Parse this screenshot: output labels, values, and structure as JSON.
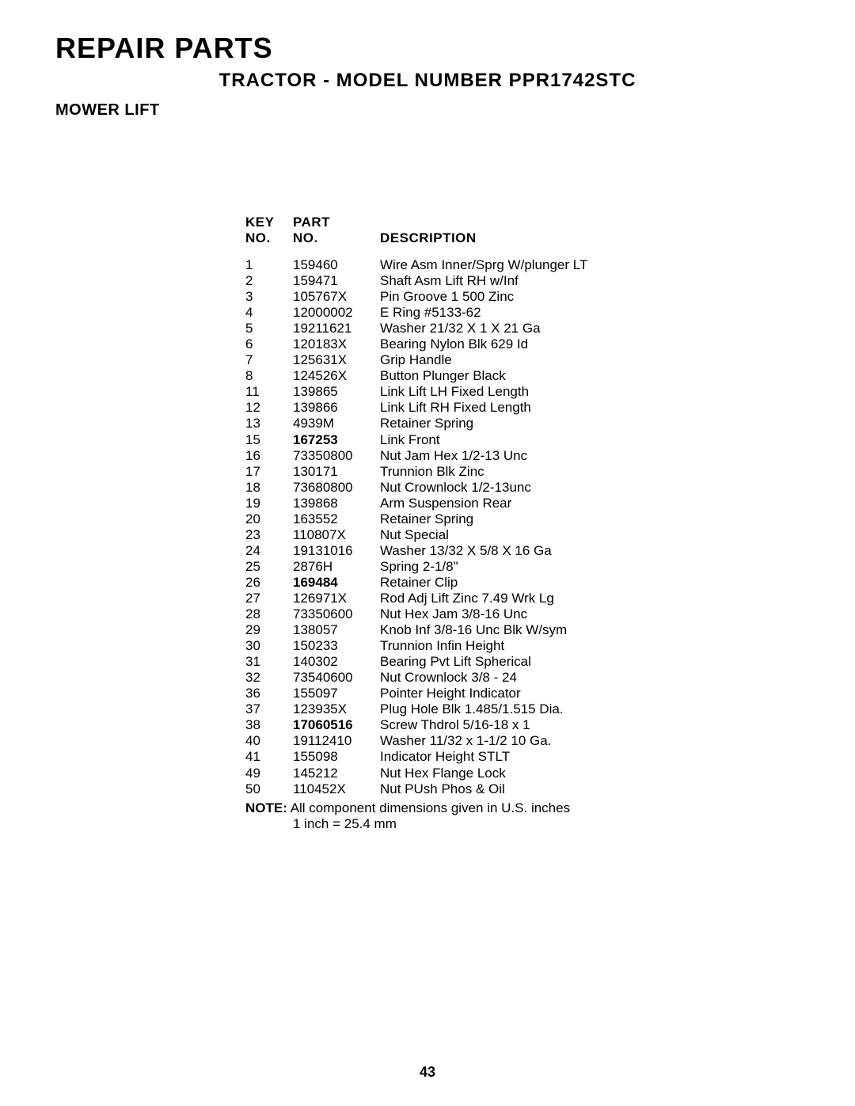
{
  "header": {
    "main_title": "REPAIR PARTS",
    "sub_title": "TRACTOR - MODEL NUMBER PPR1742STC",
    "section_title": "MOWER LIFT"
  },
  "table": {
    "columns": {
      "key_label_line1": "KEY",
      "key_label_line2": "NO.",
      "part_label_line1": "PART",
      "part_label_line2": "NO.",
      "desc_label": "DESCRIPTION"
    },
    "rows": [
      {
        "key": "1",
        "part": "159460",
        "bold": false,
        "desc": "Wire Asm Inner/Sprg W/plunger LT"
      },
      {
        "key": "2",
        "part": "159471",
        "bold": false,
        "desc": "Shaft Asm Lift RH w/Inf"
      },
      {
        "key": "3",
        "part": "105767X",
        "bold": false,
        "desc": "Pin Groove 1 500 Zinc"
      },
      {
        "key": "4",
        "part": "12000002",
        "bold": false,
        "desc": "E Ring #5133-62"
      },
      {
        "key": "5",
        "part": "19211621",
        "bold": false,
        "desc": "Washer 21/32 X 1 X 21 Ga"
      },
      {
        "key": "6",
        "part": "120183X",
        "bold": false,
        "desc": "Bearing Nylon Blk 629 Id"
      },
      {
        "key": "7",
        "part": "125631X",
        "bold": false,
        "desc": "Grip Handle"
      },
      {
        "key": "8",
        "part": "124526X",
        "bold": false,
        "desc": "Button Plunger Black"
      },
      {
        "key": "11",
        "part": "139865",
        "bold": false,
        "desc": "Link Lift LH Fixed Length"
      },
      {
        "key": "12",
        "part": "139866",
        "bold": false,
        "desc": "Link Lift RH Fixed Length"
      },
      {
        "key": "13",
        "part": "4939M",
        "bold": false,
        "desc": "Retainer Spring"
      },
      {
        "key": "15",
        "part": "167253",
        "bold": true,
        "desc": "Link Front"
      },
      {
        "key": "16",
        "part": "73350800",
        "bold": false,
        "desc": "Nut Jam Hex 1/2-13 Unc"
      },
      {
        "key": "17",
        "part": "130171",
        "bold": false,
        "desc": "Trunnion Blk Zinc"
      },
      {
        "key": "18",
        "part": "73680800",
        "bold": false,
        "desc": "Nut Crownlock 1/2-13unc"
      },
      {
        "key": "19",
        "part": "139868",
        "bold": false,
        "desc": "Arm Suspension Rear"
      },
      {
        "key": "20",
        "part": "163552",
        "bold": false,
        "desc": "Retainer Spring"
      },
      {
        "key": "23",
        "part": "110807X",
        "bold": false,
        "desc": "Nut Special"
      },
      {
        "key": "24",
        "part": "19131016",
        "bold": false,
        "desc": "Washer 13/32 X 5/8 X 16 Ga"
      },
      {
        "key": "25",
        "part": "2876H",
        "bold": false,
        "desc": "Spring 2-1/8\""
      },
      {
        "key": "26",
        "part": "169484",
        "bold": true,
        "desc": "Retainer Clip"
      },
      {
        "key": "27",
        "part": "126971X",
        "bold": false,
        "desc": "Rod Adj Lift Zinc 7.49 Wrk Lg"
      },
      {
        "key": "28",
        "part": "73350600",
        "bold": false,
        "desc": "Nut Hex Jam 3/8-16 Unc"
      },
      {
        "key": "29",
        "part": "138057",
        "bold": false,
        "desc": "Knob Inf 3/8-16 Unc Blk W/sym"
      },
      {
        "key": "30",
        "part": "150233",
        "bold": false,
        "desc": "Trunnion Infin Height"
      },
      {
        "key": "31",
        "part": "140302",
        "bold": false,
        "desc": "Bearing Pvt Lift Spherical"
      },
      {
        "key": "32",
        "part": "73540600",
        "bold": false,
        "desc": "Nut Crownlock 3/8 - 24"
      },
      {
        "key": "36",
        "part": "155097",
        "bold": false,
        "desc": "Pointer Height Indicator"
      },
      {
        "key": "37",
        "part": "123935X",
        "bold": false,
        "desc": "Plug Hole Blk 1.485/1.515 Dia."
      },
      {
        "key": "38",
        "part": "17060516",
        "bold": true,
        "desc": "Screw Thdrol  5/16-18 x 1"
      },
      {
        "key": "40",
        "part": "19112410",
        "bold": false,
        "desc": "Washer 11/32 x 1-1/2 10 Ga."
      },
      {
        "key": "41",
        "part": "155098",
        "bold": false,
        "desc": "Indicator Height STLT"
      },
      {
        "key": "49",
        "part": "145212",
        "bold": false,
        "desc": "Nut Hex Flange Lock"
      },
      {
        "key": "50",
        "part": "110452X",
        "bold": false,
        "desc": "Nut PUsh Phos & Oil"
      }
    ]
  },
  "note": {
    "label": "NOTE:",
    "line1": "All component dimensions given in U.S. inches",
    "line2": "1 inch = 25.4 mm"
  },
  "page_number": "43",
  "style": {
    "background_color": "#ffffff",
    "text_color": "#000000",
    "font_family": "Arial, Helvetica, sans-serif",
    "main_title_fontsize": 36,
    "sub_title_fontsize": 24,
    "section_title_fontsize": 20,
    "body_fontsize": 17,
    "line_height": 1.18,
    "col_widths": {
      "key": 60,
      "part": 110
    }
  }
}
